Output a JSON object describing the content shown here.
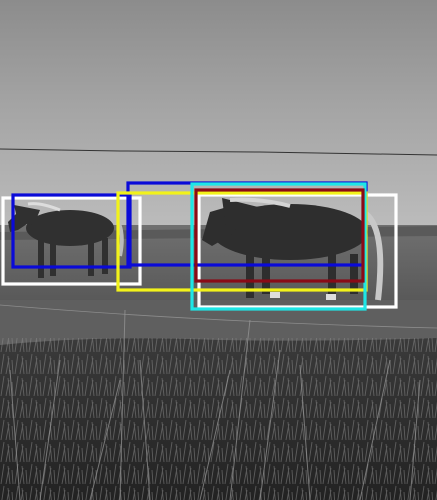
{
  "image": {
    "description_free": true,
    "mode": "grayscale"
  },
  "boxes": [
    {
      "name": "bbox-white-left",
      "color": "#ffffff"
    },
    {
      "name": "bbox-white-right",
      "color": "#ffffff"
    },
    {
      "name": "bbox-blue-left",
      "color": "#0a0ad8"
    },
    {
      "name": "bbox-blue-center",
      "color": "#0a0ad8"
    },
    {
      "name": "bbox-yellow",
      "color": "#f2f21a"
    },
    {
      "name": "bbox-cyan",
      "color": "#1ee6e6"
    },
    {
      "name": "bbox-darkred",
      "color": "#8a0a16"
    }
  ]
}
